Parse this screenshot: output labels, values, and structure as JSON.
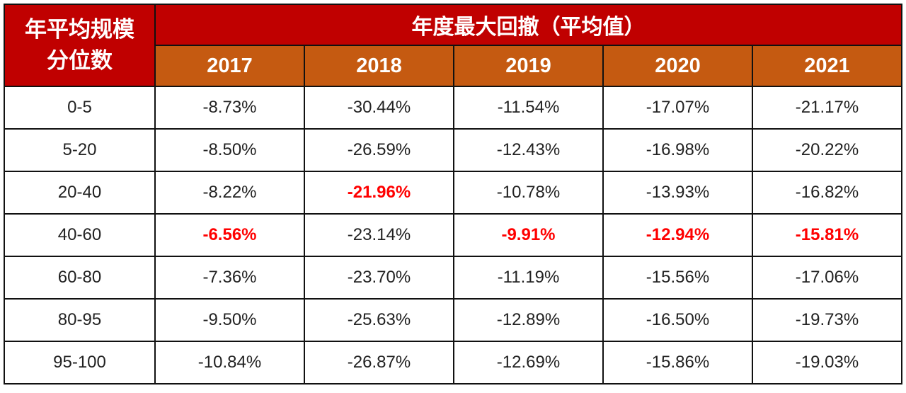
{
  "table": {
    "corner_header": [
      "年平均规模",
      "分位数"
    ],
    "group_header": "年度最大回撤（平均值）",
    "years": [
      "2017",
      "2018",
      "2019",
      "2020",
      "2021"
    ],
    "colors": {
      "header_red": "#C00000",
      "header_orange": "#C55A11",
      "highlight": "#FF0000"
    },
    "rows": [
      {
        "label": "0-5",
        "values": [
          "-8.73%",
          "-30.44%",
          "-11.54%",
          "-17.07%",
          "-21.17%"
        ],
        "highlight": []
      },
      {
        "label": "5-20",
        "values": [
          "-8.50%",
          "-26.59%",
          "-12.43%",
          "-16.98%",
          "-20.22%"
        ],
        "highlight": []
      },
      {
        "label": "20-40",
        "values": [
          "-8.22%",
          "-21.96%",
          "-10.78%",
          "-13.93%",
          "-16.82%"
        ],
        "highlight": [
          1
        ]
      },
      {
        "label": "40-60",
        "values": [
          "-6.56%",
          "-23.14%",
          "-9.91%",
          "-12.94%",
          "-15.81%"
        ],
        "highlight": [
          0,
          2,
          3,
          4
        ]
      },
      {
        "label": "60-80",
        "values": [
          "-7.36%",
          "-23.70%",
          "-11.19%",
          "-15.56%",
          "-17.06%"
        ],
        "highlight": []
      },
      {
        "label": "80-95",
        "values": [
          "-9.50%",
          "-25.63%",
          "-12.89%",
          "-16.50%",
          "-19.73%"
        ],
        "highlight": []
      },
      {
        "label": "95-100",
        "values": [
          "-10.84%",
          "-26.87%",
          "-12.69%",
          "-15.86%",
          "-19.03%"
        ],
        "highlight": []
      }
    ]
  }
}
